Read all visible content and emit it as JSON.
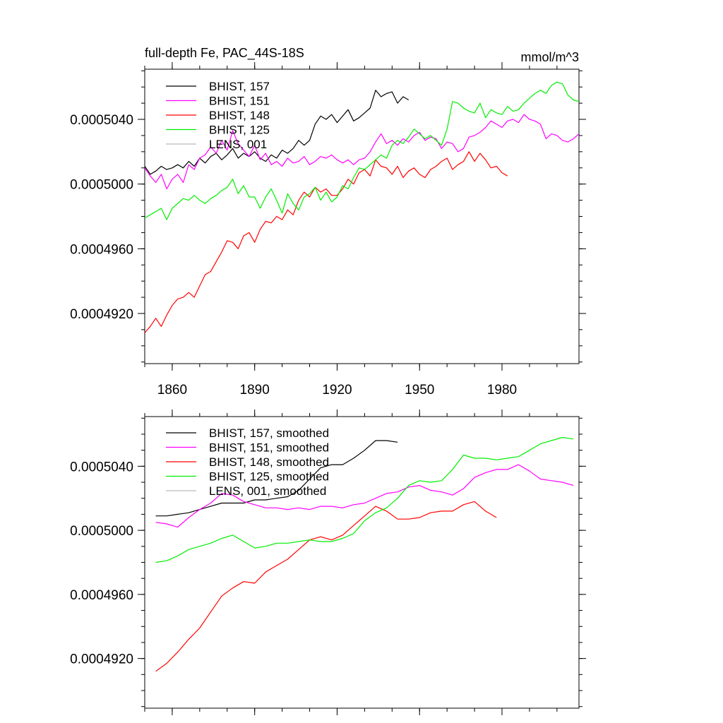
{
  "title": "full-depth Fe, PAC_44S-18S",
  "units": "mmol/m^3",
  "colors": {
    "BHIST, 157": "#000000",
    "BHIST, 151": "#ff00ff",
    "BHIST, 148": "#ff0000",
    "BHIST, 125": "#00ee00",
    "LENS, 001": "#bbbbbb"
  },
  "chart_data": [
    {
      "type": "line",
      "title": "full-depth Fe, PAC_44S-18S",
      "units": "mmol/m^3",
      "xlim": [
        1850,
        2008
      ],
      "ylim": [
        0.0004889,
        0.0005071
      ],
      "xticks": [
        1860,
        1890,
        1920,
        1950,
        1980
      ],
      "xtick_labels": [
        "1860",
        "1890",
        "1920",
        "1950",
        "1980"
      ],
      "yticks": [
        0.000492,
        0.000496,
        0.0005,
        0.000504
      ],
      "ytick_labels": [
        "0.0004920",
        "0.0004960",
        "0.0005000",
        "0.0005040"
      ],
      "legend": [
        "BHIST, 157",
        "BHIST, 151",
        "BHIST, 148",
        "BHIST, 125",
        "LENS, 001"
      ],
      "series": [
        {
          "name": "BHIST, 157",
          "x": [
            1850,
            1852,
            1854,
            1856,
            1858,
            1860,
            1862,
            1864,
            1866,
            1868,
            1870,
            1872,
            1874,
            1876,
            1878,
            1880,
            1882,
            1884,
            1886,
            1888,
            1890,
            1892,
            1894,
            1896,
            1898,
            1900,
            1902,
            1904,
            1906,
            1908,
            1910,
            1912,
            1914,
            1916,
            1918,
            1920,
            1922,
            1924,
            1926,
            1928,
            1930,
            1932,
            1934,
            1936,
            1938,
            1940,
            1942,
            1944,
            1946
          ],
          "y": [
            0.0005011,
            0.0005006,
            0.0005008,
            0.0005011,
            0.0005009,
            0.000501,
            0.0005012,
            0.000501,
            0.0005014,
            0.0005011,
            0.0005016,
            0.0005013,
            0.0005017,
            0.0005019,
            0.0005015,
            0.0005018,
            0.0005022,
            0.0005016,
            0.0005019,
            0.0005017,
            0.000502,
            0.0005016,
            0.0005014,
            0.0005018,
            0.0005016,
            0.0005021,
            0.0005019,
            0.0005022,
            0.0005027,
            0.0005024,
            0.0005027,
            0.0005037,
            0.0005042,
            0.000504,
            0.0005043,
            0.0005038,
            0.0005042,
            0.0005046,
            0.0005039,
            0.0005041,
            0.0005044,
            0.0005047,
            0.0005058,
            0.0005054,
            0.0005056,
            0.0005057,
            0.000505,
            0.0005054,
            0.0005052
          ]
        },
        {
          "name": "BHIST, 151",
          "x": [
            1850,
            1852,
            1854,
            1856,
            1858,
            1860,
            1862,
            1864,
            1866,
            1868,
            1870,
            1872,
            1874,
            1876,
            1878,
            1880,
            1882,
            1884,
            1886,
            1888,
            1890,
            1892,
            1894,
            1896,
            1898,
            1900,
            1902,
            1904,
            1906,
            1908,
            1910,
            1912,
            1914,
            1916,
            1918,
            1920,
            1922,
            1924,
            1926,
            1928,
            1930,
            1932,
            1934,
            1936,
            1938,
            1940,
            1942,
            1944,
            1946,
            1948,
            1950,
            1952,
            1954,
            1956,
            1958,
            1960,
            1962,
            1964,
            1966,
            1968,
            1970,
            1972,
            1974,
            1976,
            1978,
            1980,
            1982,
            1984,
            1986,
            1988,
            1990,
            1992,
            1994,
            1996,
            1998,
            2000,
            2002,
            2004,
            2006,
            2008
          ],
          "y": [
            0.000501,
            0.0005005,
            0.0005001,
            0.0005006,
            0.0004997,
            0.0005003,
            0.0005006,
            0.0005001,
            0.0005012,
            0.0005009,
            0.0005016,
            0.0005018,
            0.0005023,
            0.0005019,
            0.0005027,
            0.0005021,
            0.0005033,
            0.0005025,
            0.0005021,
            0.0005017,
            0.0005024,
            0.0005015,
            0.0005019,
            0.0005012,
            0.0005014,
            0.0005011,
            0.0005016,
            0.0005013,
            0.0005014,
            0.0005017,
            0.0005012,
            0.0005014,
            0.0005017,
            0.0005016,
            0.0005018,
            0.0005015,
            0.0005013,
            0.0005015,
            0.0005012,
            0.0005015,
            0.0005016,
            0.000502,
            0.0005026,
            0.0005031,
            0.0005025,
            0.0005027,
            0.0005024,
            0.0005028,
            0.0005026,
            0.000503,
            0.0005032,
            0.0005027,
            0.0005029,
            0.0005028,
            0.0005022,
            0.0005026,
            0.0005025,
            0.000502,
            0.0005022,
            0.0005029,
            0.000503,
            0.0005032,
            0.0005035,
            0.0005039,
            0.0005037,
            0.0005035,
            0.0005039,
            0.000504,
            0.0005038,
            0.0005043,
            0.000504,
            0.0005039,
            0.0005037,
            0.0005028,
            0.0005031,
            0.000503,
            0.0005027,
            0.0005026,
            0.0005028,
            0.0005031
          ]
        },
        {
          "name": "BHIST, 148",
          "x": [
            1850,
            1852,
            1854,
            1856,
            1858,
            1860,
            1862,
            1864,
            1866,
            1868,
            1870,
            1872,
            1874,
            1876,
            1878,
            1880,
            1882,
            1884,
            1886,
            1888,
            1890,
            1892,
            1894,
            1896,
            1898,
            1900,
            1902,
            1904,
            1906,
            1908,
            1910,
            1912,
            1914,
            1916,
            1918,
            1920,
            1922,
            1924,
            1926,
            1928,
            1930,
            1932,
            1934,
            1936,
            1938,
            1940,
            1942,
            1944,
            1946,
            1948,
            1950,
            1952,
            1954,
            1956,
            1958,
            1960,
            1962,
            1964,
            1966,
            1968,
            1970,
            1972,
            1974,
            1976,
            1978,
            1980,
            1982
          ],
          "y": [
            0.0004908,
            0.0004912,
            0.0004917,
            0.0004912,
            0.0004919,
            0.0004925,
            0.0004929,
            0.000493,
            0.0004933,
            0.000493,
            0.0004937,
            0.0004944,
            0.0004946,
            0.0004952,
            0.0004958,
            0.0004965,
            0.0004964,
            0.000496,
            0.0004968,
            0.000497,
            0.0004964,
            0.0004972,
            0.0004977,
            0.0004976,
            0.000498,
            0.0004978,
            0.0004984,
            0.0004981,
            0.000499,
            0.0004995,
            0.0004992,
            0.0004998,
            0.0004995,
            0.0004997,
            0.0004993,
            0.0004993,
            0.0004997,
            0.0005003,
            0.0005,
            0.0005007,
            0.0005009,
            0.0005005,
            0.0005015,
            0.0005011,
            0.000501,
            0.0005006,
            0.0005011,
            0.0005004,
            0.0005008,
            0.000501,
            0.0005006,
            0.0005004,
            0.0005009,
            0.0005011,
            0.0005014,
            0.0005016,
            0.0005009,
            0.0005012,
            0.0005014,
            0.000502,
            0.0005014,
            0.0005019,
            0.0005015,
            0.000501,
            0.0005011,
            0.0005007,
            0.0005005
          ]
        },
        {
          "name": "BHIST, 125",
          "x": [
            1850,
            1852,
            1854,
            1856,
            1858,
            1860,
            1862,
            1864,
            1866,
            1868,
            1870,
            1872,
            1874,
            1876,
            1878,
            1880,
            1882,
            1884,
            1886,
            1888,
            1890,
            1892,
            1894,
            1896,
            1898,
            1900,
            1902,
            1904,
            1906,
            1908,
            1910,
            1912,
            1914,
            1916,
            1918,
            1920,
            1922,
            1924,
            1926,
            1928,
            1930,
            1932,
            1934,
            1936,
            1938,
            1940,
            1942,
            1944,
            1946,
            1948,
            1950,
            1952,
            1954,
            1956,
            1958,
            1960,
            1962,
            1964,
            1966,
            1968,
            1970,
            1972,
            1974,
            1976,
            1978,
            1980,
            1982,
            1984,
            1986,
            1988,
            1990,
            1992,
            1994,
            1996,
            1998,
            2000,
            2002,
            2004,
            2006,
            2008
          ],
          "y": [
            0.0004979,
            0.0004981,
            0.0004983,
            0.0004985,
            0.0004978,
            0.0004985,
            0.0004988,
            0.0004991,
            0.000499,
            0.0004993,
            0.000499,
            0.0004988,
            0.0004991,
            0.0004993,
            0.0004996,
            0.0004998,
            0.0005003,
            0.0004994,
            0.0004999,
            0.0004992,
            0.0004992,
            0.0004985,
            0.0004992,
            0.0004997,
            0.000499,
            0.0004982,
            0.0004994,
            0.0004988,
            0.0004984,
            0.0004992,
            0.0004994,
            0.0004998,
            0.000499,
            0.0004995,
            0.0004989,
            0.0004992,
            0.0004999,
            0.0004997,
            0.0005004,
            0.000501,
            0.0005009,
            0.0005012,
            0.0005015,
            0.0005018,
            0.0005016,
            0.0005024,
            0.0005027,
            0.0005025,
            0.0005029,
            0.0005034,
            0.0005031,
            0.0005028,
            0.000503,
            0.0005027,
            0.0005024,
            0.0005034,
            0.0005051,
            0.000505,
            0.0005047,
            0.0005045,
            0.0005044,
            0.000505,
            0.0005041,
            0.0005046,
            0.0005044,
            0.0005043,
            0.0005048,
            0.0005045,
            0.0005046,
            0.000505,
            0.0005053,
            0.0005056,
            0.0005058,
            0.0005056,
            0.0005061,
            0.0005063,
            0.0005062,
            0.0005055,
            0.0005052,
            0.0005051
          ]
        },
        {
          "name": "LENS, 001",
          "x": [],
          "y": []
        }
      ]
    },
    {
      "type": "line",
      "title": "",
      "xlim": [
        1850,
        2008
      ],
      "ylim": [
        0.0004889,
        0.0005071
      ],
      "xticks": [
        1860,
        1890,
        1920,
        1950,
        1980
      ],
      "xtick_labels": [],
      "yticks": [
        0.000492,
        0.000496,
        0.0005,
        0.000504
      ],
      "ytick_labels": [
        "0.0004920",
        "0.0004960",
        "0.0005000",
        "0.0005040"
      ],
      "legend": [
        "BHIST, 157, smoothed",
        "BHIST, 151, smoothed",
        "BHIST, 148, smoothed",
        "BHIST, 125, smoothed",
        "LENS, 001, smoothed"
      ],
      "series": [
        {
          "name": "BHIST, 157, smoothed",
          "x": [
            1854,
            1858,
            1862,
            1866,
            1870,
            1874,
            1878,
            1882,
            1886,
            1890,
            1894,
            1898,
            1902,
            1906,
            1910,
            1914,
            1918,
            1922,
            1926,
            1930,
            1934,
            1938,
            1942
          ],
          "y": [
            0.0005009,
            0.0005009,
            0.000501,
            0.0005011,
            0.0005013,
            0.0005015,
            0.0005017,
            0.0005017,
            0.0005017,
            0.0005019,
            0.0005019,
            0.000502,
            0.0005021,
            0.0005025,
            0.0005032,
            0.0005039,
            0.0005041,
            0.0005041,
            0.0005045,
            0.000505,
            0.0005056,
            0.0005056,
            0.0005055
          ]
        },
        {
          "name": "BHIST, 151, smoothed",
          "x": [
            1854,
            1858,
            1862,
            1866,
            1870,
            1874,
            1878,
            1882,
            1886,
            1890,
            1894,
            1898,
            1902,
            1906,
            1910,
            1914,
            1918,
            1922,
            1926,
            1930,
            1934,
            1938,
            1942,
            1946,
            1950,
            1954,
            1958,
            1962,
            1966,
            1970,
            1974,
            1978,
            1982,
            1986,
            1990,
            1994,
            1998,
            2002,
            2006
          ],
          "y": [
            0.0005005,
            0.0005004,
            0.0005002,
            0.0005008,
            0.0005013,
            0.0005017,
            0.0005023,
            0.0005022,
            0.0005018,
            0.0005016,
            0.0005014,
            0.0005014,
            0.0005013,
            0.0005014,
            0.0005013,
            0.0005015,
            0.0005015,
            0.0005014,
            0.0005016,
            0.0005017,
            0.000502,
            0.0005023,
            0.0005024,
            0.0005027,
            0.0005028,
            0.0005025,
            0.0005024,
            0.0005022,
            0.0005026,
            0.0005033,
            0.0005036,
            0.0005038,
            0.0005038,
            0.0005041,
            0.0005037,
            0.0005032,
            0.0005031,
            0.000503,
            0.0005028
          ]
        },
        {
          "name": "BHIST, 148, smoothed",
          "x": [
            1854,
            1858,
            1862,
            1866,
            1870,
            1874,
            1878,
            1882,
            1886,
            1890,
            1894,
            1898,
            1902,
            1906,
            1910,
            1914,
            1918,
            1922,
            1926,
            1930,
            1934,
            1938,
            1942,
            1946,
            1950,
            1954,
            1958,
            1962,
            1966,
            1970,
            1974,
            1978
          ],
          "y": [
            0.0004912,
            0.0004917,
            0.0004924,
            0.0004932,
            0.0004939,
            0.0004949,
            0.0004959,
            0.0004964,
            0.0004968,
            0.0004967,
            0.0004974,
            0.0004978,
            0.0004982,
            0.0004988,
            0.0004994,
            0.0004996,
            0.0004994,
            0.0004997,
            0.0005003,
            0.0005009,
            0.0005015,
            0.0005012,
            0.0005007,
            0.0005007,
            0.0005008,
            0.0005011,
            0.0005012,
            0.0005012,
            0.0005016,
            0.0005018,
            0.0005012,
            0.0005008
          ]
        },
        {
          "name": "BHIST, 125, smoothed",
          "x": [
            1854,
            1858,
            1862,
            1866,
            1870,
            1874,
            1878,
            1882,
            1886,
            1890,
            1894,
            1898,
            1902,
            1906,
            1910,
            1914,
            1918,
            1922,
            1926,
            1930,
            1934,
            1938,
            1942,
            1946,
            1950,
            1954,
            1958,
            1962,
            1966,
            1970,
            1974,
            1978,
            1982,
            1986,
            1990,
            1994,
            1998,
            2002,
            2006
          ],
          "y": [
            0.000498,
            0.0004981,
            0.0004984,
            0.0004988,
            0.000499,
            0.0004992,
            0.0004995,
            0.0004997,
            0.0004993,
            0.0004989,
            0.000499,
            0.0004992,
            0.0004992,
            0.0004993,
            0.0004994,
            0.0004993,
            0.0004993,
            0.0004995,
            0.0004998,
            0.0005006,
            0.0005011,
            0.0005014,
            0.000502,
            0.0005028,
            0.0005031,
            0.000503,
            0.0005031,
            0.0005038,
            0.0005047,
            0.0005045,
            0.0005045,
            0.0005044,
            0.0005045,
            0.0005046,
            0.000505,
            0.0005054,
            0.0005056,
            0.0005058,
            0.0005057
          ]
        },
        {
          "name": "LENS, 001, smoothed",
          "x": [],
          "y": []
        }
      ]
    }
  ]
}
